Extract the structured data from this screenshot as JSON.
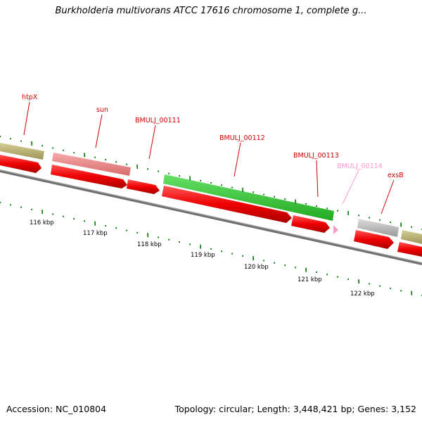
{
  "title": "Burkholderia multivorans ATCC 17616 chromosome 1, complete g...",
  "accession_text": "Accession: NC_010804",
  "stats_text": "Topology: circular; Length: 3,448,421 bp; Genes: 3,152",
  "kbp_labels": [
    "116 kbp",
    "117 kbp",
    "118 kbp",
    "119 kbp",
    "120 kbp",
    "121 kbp",
    "122 kbp"
  ],
  "gene_labels": [
    {
      "name": "htpX",
      "color": "#cc0000"
    },
    {
      "name": "sun",
      "color": "#cc0000"
    },
    {
      "name": "BMULJ_00111",
      "color": "#cc0000"
    },
    {
      "name": "BMULJ_00112",
      "color": "#cc0000"
    },
    {
      "name": "BMULJ_00113",
      "color": "#cc0000"
    },
    {
      "name": "BMULJ_00114",
      "color": "#ff99cc"
    },
    {
      "name": "exsB",
      "color": "#cc0000"
    }
  ],
  "colors": {
    "cds": "#ee0000",
    "gene_khaki": "#b8b070",
    "gene_salmon": "#ee8888",
    "gene_green": "#33cc33",
    "gene_gray": "#bbbbbb",
    "gene_pink": "#ff99cc",
    "backbone": "#888888",
    "tick": "#006600"
  }
}
